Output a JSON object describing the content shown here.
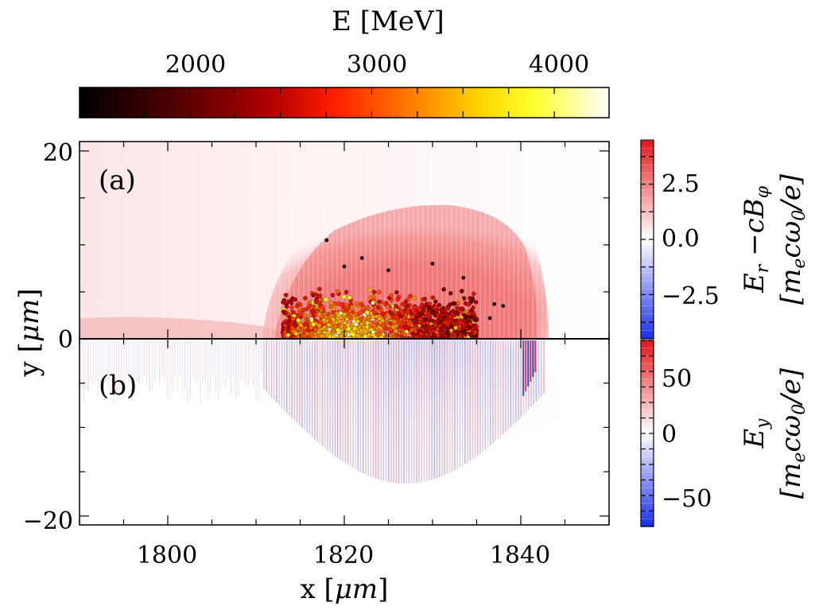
{
  "chart_data": [
    {
      "panel": "(a)",
      "type": "heatmap",
      "xlabel": "x [μm]",
      "ylabel": "y [μm]",
      "xlim": [
        1790,
        1850
      ],
      "ylim": [
        0,
        21
      ],
      "xticks": [
        1800,
        1820,
        1840
      ],
      "yticks": [
        0,
        20
      ],
      "field_colorbar": {
        "label_line1": "E_r − cB_φ",
        "label_line2": "[m_e c ω_0 / e]",
        "ticks": [
          {
            "value": 2.5,
            "label": "2.5"
          },
          {
            "value": 0.0,
            "label": "0.0"
          },
          {
            "value": -2.5,
            "label": "−2.5"
          }
        ],
        "range": [
          -4.5,
          4.5
        ]
      },
      "field_region": {
        "description_values": {
          "x_start": 1812,
          "x_end": 1843,
          "y_peak": 15,
          "center_x": 1828,
          "peak_value": 2.2
        }
      },
      "electrons": {
        "label": "E [MeV]",
        "energy_colorbar_ticks": [
          2000,
          3000,
          4000
        ],
        "energy_range": [
          1400,
          4300
        ],
        "bunch": {
          "x_range": [
            1813,
            1835
          ],
          "y_range": [
            0,
            6
          ],
          "count": 1400
        }
      }
    },
    {
      "panel": "(b)",
      "type": "heatmap",
      "xlabel": "x [μm]",
      "ylabel": "y [μm]",
      "xlim": [
        1790,
        1850
      ],
      "ylim": [
        -21,
        0
      ],
      "xticks": [
        1800,
        1820,
        1840
      ],
      "yticks": [
        -20
      ],
      "ytick_labels": [
        "−20"
      ],
      "field_colorbar": {
        "label_line1": "E_y",
        "label_line2": "[m_e c ω_0 / e]",
        "ticks": [
          {
            "value": 50,
            "label": "50"
          },
          {
            "value": 0,
            "label": "0"
          },
          {
            "value": -50,
            "label": "−50"
          }
        ],
        "range": [
          -75,
          75
        ]
      }
    }
  ],
  "labels": {
    "energy_title": "E [MeV]",
    "energy_ticks": [
      "2000",
      "3000",
      "4000"
    ],
    "panel_a": "(a)",
    "panel_b": "(b)",
    "ytick_20": "20",
    "ytick_0": "0",
    "ytick_m20": "−20",
    "xtick_1800": "1800",
    "xtick_1820": "1820",
    "xtick_1840": "1840",
    "cb_a_25": "2.5",
    "cb_a_00": "0.0",
    "cb_a_m25": "−2.5",
    "cb_b_50": "50",
    "cb_b_0": "0",
    "cb_b_m50": "−50",
    "xlabel_a": "x [",
    "xlabel_b": "μm",
    "xlabel_c": "]",
    "ylabel_a": "y [",
    "ylabel_b": "μm",
    "ylabel_c": "]",
    "cb_a_l1_E": "E",
    "cb_a_l1_r": "r",
    "cb_a_l1_mid": " −cB",
    "cb_a_l1_phi": "φ",
    "cb_a_l2": "[m",
    "cb_a_l2_e": "e",
    "cb_a_l2_mid": "cω",
    "cb_a_l2_0": "0",
    "cb_a_l2_end": "/e]",
    "cb_b_l1_E": "E",
    "cb_b_l1_y": "y",
    "cb_b_l2": "[m",
    "cb_b_l2_e": "e",
    "cb_b_l2_mid": "cω",
    "cb_b_l2_0": "0",
    "cb_b_l2_end": "/e]"
  },
  "colors": {
    "field_pos": "#e8141e",
    "field_neg": "#1432e6",
    "hot_stops": [
      "#000000",
      "#5a0000",
      "#b40000",
      "#ff2a00",
      "#ff8c00",
      "#ffe600",
      "#ffff40",
      "#ffffff"
    ]
  }
}
